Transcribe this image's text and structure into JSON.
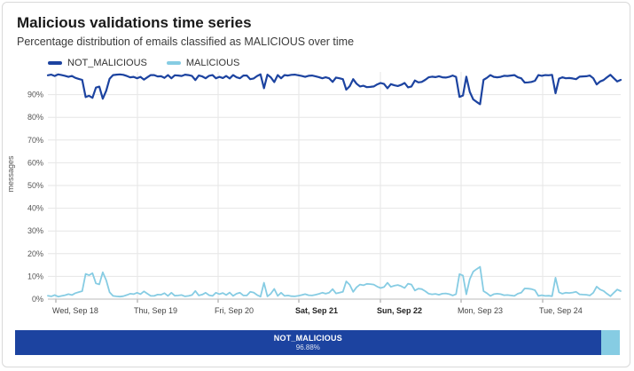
{
  "header": {
    "title": "Malicious validations time series",
    "subtitle": "Percentage distribution of emails classified as MALICIOUS over time"
  },
  "colors": {
    "not_malicious": "#1c43a0",
    "malicious": "#86cce3",
    "grid": "#e6e6e6"
  },
  "chart_data": {
    "type": "line",
    "title": "Malicious validations time series",
    "xlabel": "",
    "ylabel": "messages",
    "ylim": [
      0,
      100
    ],
    "xlim_days": [
      "Sep 17 18:00",
      "Sep 25 07:00"
    ],
    "yticks": [
      "0%",
      "10%",
      "20%",
      "30%",
      "40%",
      "50%",
      "60%",
      "70%",
      "80%",
      "90%"
    ],
    "xticks": [
      {
        "label": "Wed, Sep 18",
        "bold": false
      },
      {
        "label": "Thu, Sep 19",
        "bold": false
      },
      {
        "label": "Fri, Sep 20",
        "bold": false
      },
      {
        "label": "Sat, Sep 21",
        "bold": true
      },
      {
        "label": "Sun, Sep 22",
        "bold": true
      },
      {
        "label": "Mon, Sep 23",
        "bold": false
      },
      {
        "label": "Tue, Sep 24",
        "bold": false
      }
    ],
    "grid": true,
    "legend_position": "top-left",
    "series": [
      {
        "name": "NOT_MALICIOUS",
        "values": [
          98.5,
          98.8,
          98.2,
          98.9,
          98.6,
          98.3,
          97.8,
          98.2,
          97.4,
          96.9,
          96.5,
          88.9,
          89.5,
          88.6,
          93.1,
          93.5,
          88.2,
          91.7,
          97.0,
          98.6,
          98.8,
          98.9,
          98.7,
          98.2,
          97.6,
          97.8,
          97.2,
          97.8,
          96.6,
          97.6,
          98.6,
          98.6,
          98.0,
          98.1,
          97.4,
          98.6,
          97.2,
          98.5,
          98.4,
          98.2,
          98.8,
          98.6,
          98.2,
          96.4,
          98.4,
          98.0,
          97.2,
          98.3,
          98.6,
          97.2,
          97.8,
          97.3,
          98.2,
          97.1,
          98.6,
          97.6,
          97.2,
          98.4,
          98.4,
          96.8,
          97.1,
          98.2,
          98.9,
          92.8,
          98.8,
          97.6,
          95.5,
          98.6,
          97.2,
          98.6,
          98.4,
          98.7,
          98.8,
          98.5,
          98.2,
          97.8,
          98.3,
          98.4,
          98.1,
          97.7,
          97.2,
          97.6,
          97.2,
          95.6,
          97.5,
          97.2,
          96.8,
          92.2,
          93.7,
          96.8,
          94.8,
          93.6,
          93.9,
          93.3,
          93.4,
          93.6,
          94.5,
          95.1,
          94.7,
          92.8,
          94.6,
          94.1,
          93.8,
          94.3,
          95.1,
          93.2,
          93.6,
          96.2,
          95.4,
          95.6,
          96.5,
          97.6,
          97.9,
          97.7,
          98.1,
          97.6,
          97.5,
          97.8,
          98.4,
          97.8,
          89.0,
          89.6,
          97.9,
          91.2,
          87.9,
          86.8,
          85.8,
          96.5,
          97.4,
          98.6,
          97.8,
          97.6,
          97.8,
          98.3,
          98.2,
          98.4,
          98.6,
          97.6,
          97.2,
          95.3,
          95.4,
          95.6,
          96.1,
          98.6,
          98.3,
          98.6,
          98.5,
          98.7,
          90.6,
          97.0,
          97.6,
          97.2,
          97.3,
          97.1,
          96.8,
          97.9,
          98.0,
          98.1,
          98.4,
          97.2,
          94.5,
          95.8,
          96.4,
          97.6,
          98.7,
          97.2,
          95.8,
          96.5
        ]
      },
      {
        "name": "MALICIOUS",
        "values": [
          1.5,
          1.2,
          1.8,
          1.1,
          1.4,
          1.7,
          2.2,
          1.8,
          2.6,
          3.1,
          3.5,
          11.1,
          10.5,
          11.4,
          6.9,
          6.5,
          11.8,
          8.3,
          3.0,
          1.4,
          1.2,
          1.1,
          1.3,
          1.8,
          2.4,
          2.2,
          2.8,
          2.2,
          3.4,
          2.4,
          1.4,
          1.4,
          2.0,
          1.9,
          2.6,
          1.4,
          2.8,
          1.5,
          1.6,
          1.8,
          1.2,
          1.4,
          1.8,
          3.6,
          1.6,
          2.0,
          2.8,
          1.7,
          1.4,
          2.8,
          2.2,
          2.7,
          1.8,
          2.9,
          1.4,
          2.4,
          2.8,
          1.6,
          1.6,
          3.2,
          2.9,
          1.8,
          1.1,
          7.2,
          1.2,
          2.4,
          4.5,
          1.4,
          2.8,
          1.4,
          1.6,
          1.3,
          1.2,
          1.5,
          1.8,
          2.2,
          1.7,
          1.6,
          1.9,
          2.3,
          2.8,
          2.4,
          2.8,
          4.4,
          2.5,
          2.8,
          3.2,
          7.8,
          6.3,
          3.2,
          5.2,
          6.4,
          6.1,
          6.7,
          6.6,
          6.4,
          5.5,
          4.9,
          5.3,
          7.2,
          5.4,
          5.9,
          6.2,
          5.7,
          4.9,
          6.8,
          6.4,
          3.8,
          4.6,
          4.4,
          3.5,
          2.4,
          2.1,
          2.3,
          1.9,
          2.4,
          2.5,
          2.2,
          1.6,
          2.2,
          11.0,
          10.4,
          2.1,
          8.8,
          12.1,
          13.2,
          14.2,
          3.5,
          2.6,
          1.4,
          2.2,
          2.4,
          2.2,
          1.7,
          1.8,
          1.6,
          1.4,
          2.4,
          2.8,
          4.7,
          4.6,
          4.4,
          3.9,
          1.4,
          1.7,
          1.4,
          1.5,
          1.3,
          9.4,
          3.0,
          2.4,
          2.8,
          2.7,
          2.9,
          3.2,
          2.1,
          2.0,
          1.9,
          1.6,
          2.8,
          5.5,
          4.2,
          3.6,
          2.4,
          1.3,
          2.8,
          4.2,
          3.5
        ]
      }
    ],
    "totals": [
      {
        "name": "NOT_MALICIOUS",
        "percent": 96.88,
        "label": "96.88%"
      },
      {
        "name": "MALICIOUS",
        "percent": 3.12,
        "label": "3.12%"
      }
    ]
  }
}
